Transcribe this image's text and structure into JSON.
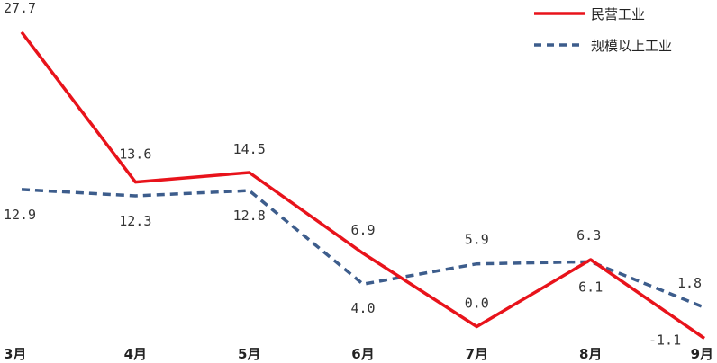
{
  "chart_data": {
    "type": "line",
    "categories": [
      "3月",
      "4月",
      "5月",
      "6月",
      "7月",
      "8月",
      "9月"
    ],
    "series": [
      {
        "name": "民营工业",
        "values": [
          27.7,
          13.6,
          14.5,
          6.9,
          0.0,
          6.3,
          -1.1
        ],
        "labels": [
          "27.7",
          "13.6",
          "14.5",
          "6.9",
          "0.0",
          "6.3",
          "-1.1"
        ],
        "color": "#e8131b",
        "style": "solid"
      },
      {
        "name": "规模以上工业",
        "values": [
          12.9,
          12.3,
          12.8,
          4.0,
          5.9,
          6.1,
          1.8
        ],
        "labels": [
          "12.9",
          "12.3",
          "12.8",
          "4.0",
          "5.9",
          "6.1",
          "1.8"
        ],
        "color": "#3d5d8c",
        "style": "dashed"
      }
    ],
    "legend_position": "top-right",
    "grid": false
  }
}
